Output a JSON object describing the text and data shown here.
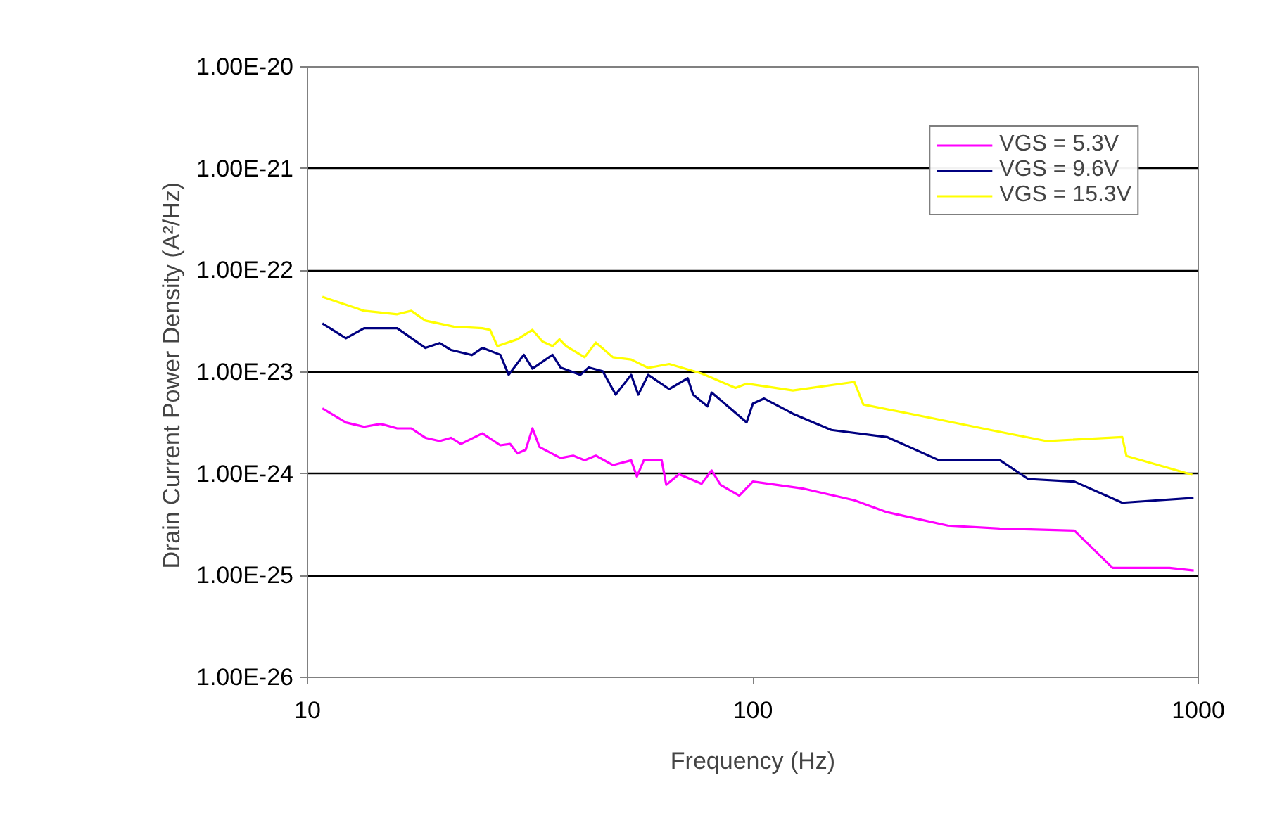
{
  "chart_data": {
    "type": "line",
    "xlabel": "Frequency (Hz)",
    "ylabel": "Drain Current Power Density  (A²/Hz)",
    "log": "xy",
    "xlim": [
      10,
      1000
    ],
    "xticks": [
      10,
      100,
      1000
    ],
    "ylim": [
      1e-26,
      1e-20
    ],
    "yticks": [
      {
        "value": 1e-26,
        "label": "1.00E-26"
      },
      {
        "value": 1e-25,
        "label": "1.00E-25"
      },
      {
        "value": 1e-24,
        "label": "1.00E-24"
      },
      {
        "value": 1e-23,
        "label": "1.00E-23"
      },
      {
        "value": 1e-22,
        "label": "1.00E-22"
      },
      {
        "value": 1e-21,
        "label": "1.00E-21"
      },
      {
        "value": 1e-20,
        "label": "1.00E-20"
      }
    ],
    "grid": "y",
    "legend": "top right",
    "marker": "none",
    "line_style": "solid",
    "series": [
      {
        "name": "VGS = 5.3V",
        "color": "#ff00ff",
        "x": [
          10.8,
          12.2,
          13.4,
          14.6,
          15.9,
          17.1,
          18.4,
          19.8,
          21.0,
          22.1,
          24.7,
          27.1,
          28.5,
          29.6,
          30.9,
          32.0,
          33.2,
          37.0,
          39.5,
          41.9,
          44.4,
          48.5,
          53.3,
          54.9,
          56.9,
          62.4,
          63.9,
          68.3,
          76.7,
          80.8,
          84.6,
          93.2,
          100,
          129,
          169,
          200,
          274,
          358,
          527,
          642,
          862,
          977
        ],
        "values": [
          4.4e-24,
          3.2e-24,
          2.9e-24,
          3.1e-24,
          2.8e-24,
          2.8e-24,
          2.26e-24,
          2.1e-24,
          2.26e-24,
          1.97e-24,
          2.5e-24,
          1.91e-24,
          1.97e-24,
          1.59e-24,
          1.72e-24,
          2.8e-24,
          1.83e-24,
          1.43e-24,
          1.51e-24,
          1.36e-24,
          1.51e-24,
          1.22e-24,
          1.36e-24,
          9.4e-25,
          1.36e-24,
          1.36e-24,
          7.8e-25,
          9.9e-25,
          8e-25,
          1.08e-24,
          7.8e-25,
          6.1e-25,
          8.4e-25,
          7.2e-25,
          5.5e-25,
          4.2e-25,
          3.1e-25,
          2.9e-25,
          2.77e-25,
          1.19e-25,
          1.19e-25,
          1.12e-25
        ]
      },
      {
        "name": "VGS = 9.6V",
        "color": "#000080",
        "x": [
          10.8,
          12.2,
          13.4,
          15.9,
          18.4,
          19.8,
          21.0,
          23.4,
          24.7,
          27.1,
          28.3,
          30.6,
          32.0,
          35.5,
          37.0,
          41.0,
          42.8,
          46.0,
          49.2,
          53.3,
          55.3,
          58.2,
          64.9,
          71.4,
          73.4,
          79.1,
          80.8,
          96.8,
          100,
          106,
          123,
          150,
          200,
          262,
          359,
          415,
          527,
          675,
          812,
          976
        ],
        "values": [
          3e-23,
          2.15e-23,
          2.7e-23,
          2.7e-23,
          1.73e-23,
          1.93e-23,
          1.65e-23,
          1.47e-23,
          1.73e-23,
          1.48e-23,
          9.4e-24,
          1.48e-23,
          1.08e-23,
          1.48e-23,
          1.11e-23,
          9.4e-24,
          1.11e-23,
          1.02e-23,
          6e-24,
          9.4e-24,
          6e-24,
          9.4e-24,
          6.8e-24,
          8.7e-24,
          6e-24,
          4.6e-24,
          6.3e-24,
          3.2e-24,
          4.9e-24,
          5.5e-24,
          3.9e-24,
          2.7e-24,
          2.3e-24,
          1.36e-24,
          1.36e-24,
          8.9e-25,
          8.4e-25,
          5.2e-25,
          5.5e-25,
          5.8e-25
        ]
      },
      {
        "name": "VGS = 15.3V",
        "color": "#ffff00",
        "x": [
          10.8,
          13.4,
          15.9,
          17.1,
          18.4,
          21.3,
          24.7,
          25.7,
          26.7,
          29.6,
          32.0,
          33.7,
          35.5,
          36.8,
          38.1,
          41.9,
          44.4,
          48.5,
          53.3,
          58.2,
          64.9,
          76.7,
          91.4,
          96.8,
          123,
          169,
          177,
          255,
          341,
          456,
          675,
          690,
          970
        ],
        "values": [
          5.5e-23,
          4e-23,
          3.7e-23,
          4e-23,
          3.2e-23,
          2.8e-23,
          2.7e-23,
          2.6e-23,
          1.8e-23,
          2.1e-23,
          2.6e-23,
          2e-23,
          1.8e-23,
          2.1e-23,
          1.8e-23,
          1.4e-23,
          1.95e-23,
          1.4e-23,
          1.33e-23,
          1.1e-23,
          1.2e-23,
          9.7e-24,
          7e-24,
          7.7e-24,
          6.6e-24,
          8e-24,
          4.8e-24,
          3.5e-24,
          2.7e-24,
          2.1e-24,
          2.3e-24,
          1.5e-24,
          9.8e-25
        ]
      }
    ]
  }
}
